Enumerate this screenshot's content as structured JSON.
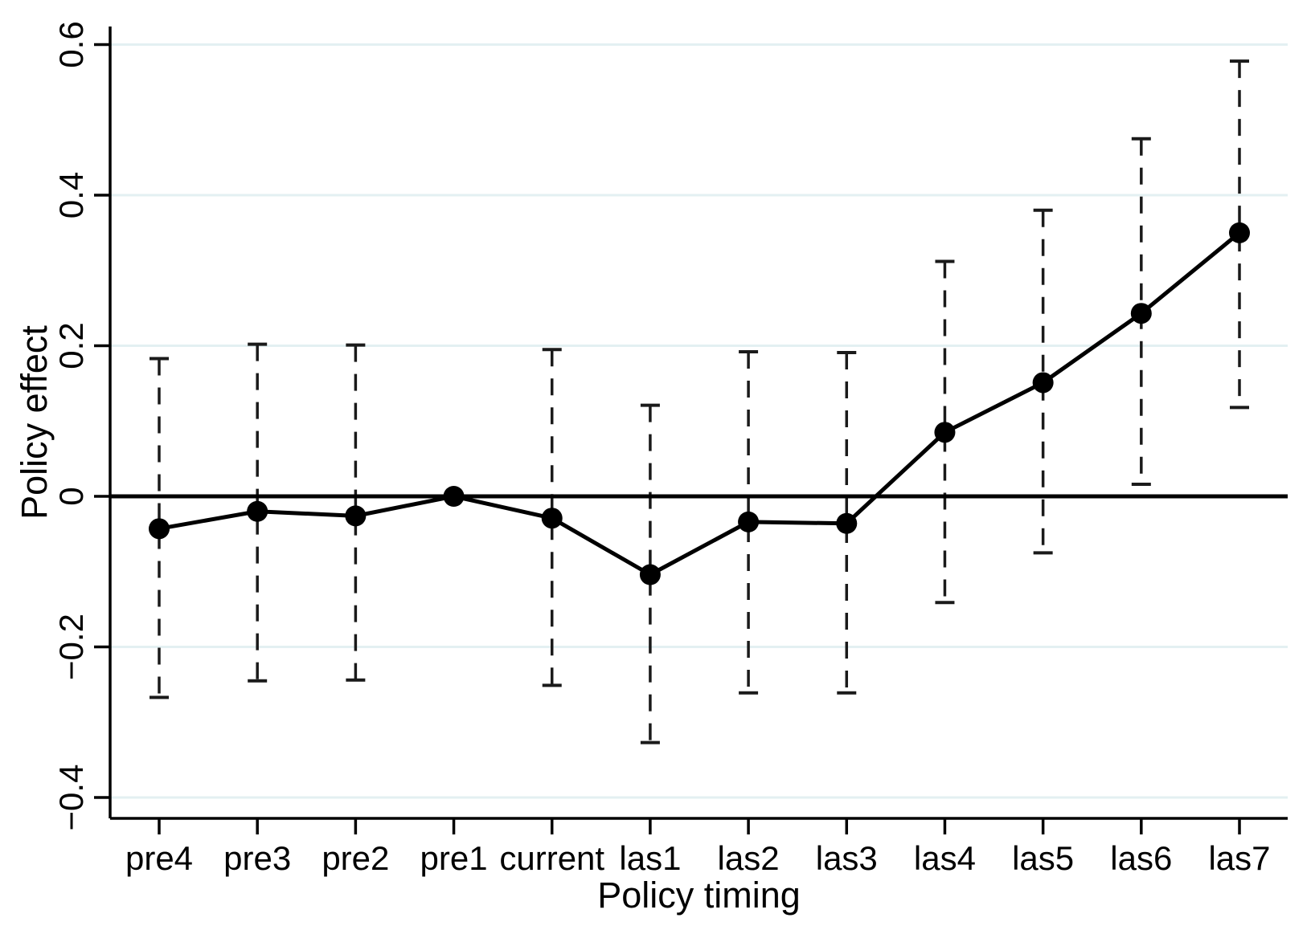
{
  "figure": {
    "background": "#ffffff"
  },
  "chart_data": {
    "type": "line",
    "subtype": "coefficient-plot-with-error-bars",
    "title": "",
    "xlabel": "Policy timing",
    "ylabel": "Policy effect",
    "categories": [
      "pre4",
      "pre3",
      "pre2",
      "pre1",
      "current",
      "las1",
      "las2",
      "las3",
      "las4",
      "las5",
      "las6",
      "las7"
    ],
    "series": [
      {
        "name": "point-estimate",
        "values": [
          -0.043,
          -0.02,
          -0.026,
          0.0,
          -0.029,
          -0.104,
          -0.034,
          -0.036,
          0.085,
          0.151,
          0.243,
          0.35
        ]
      }
    ],
    "ci_low": [
      -0.267,
      -0.245,
      -0.244,
      null,
      -0.251,
      -0.327,
      -0.261,
      -0.261,
      -0.141,
      -0.075,
      0.016,
      0.118
    ],
    "ci_high": [
      0.183,
      0.202,
      0.201,
      null,
      0.195,
      0.121,
      0.192,
      0.191,
      0.312,
      0.38,
      0.475,
      0.578
    ],
    "ylim": [
      -0.427,
      0.624
    ],
    "yticks": [
      -0.4,
      -0.2,
      0,
      0.2,
      0.4,
      0.6
    ],
    "ytick_labels": [
      "−0.4",
      "−0.2",
      "0",
      "0.2",
      "0.4",
      "0.6"
    ],
    "grid": true,
    "zero_line": true,
    "legend": "none",
    "colors": {
      "line": "#000000",
      "marker": "#000000",
      "whisker": "#1a1a1a",
      "axis": "#000000",
      "gridline": "#e3f0f2",
      "text": "#000000"
    }
  }
}
